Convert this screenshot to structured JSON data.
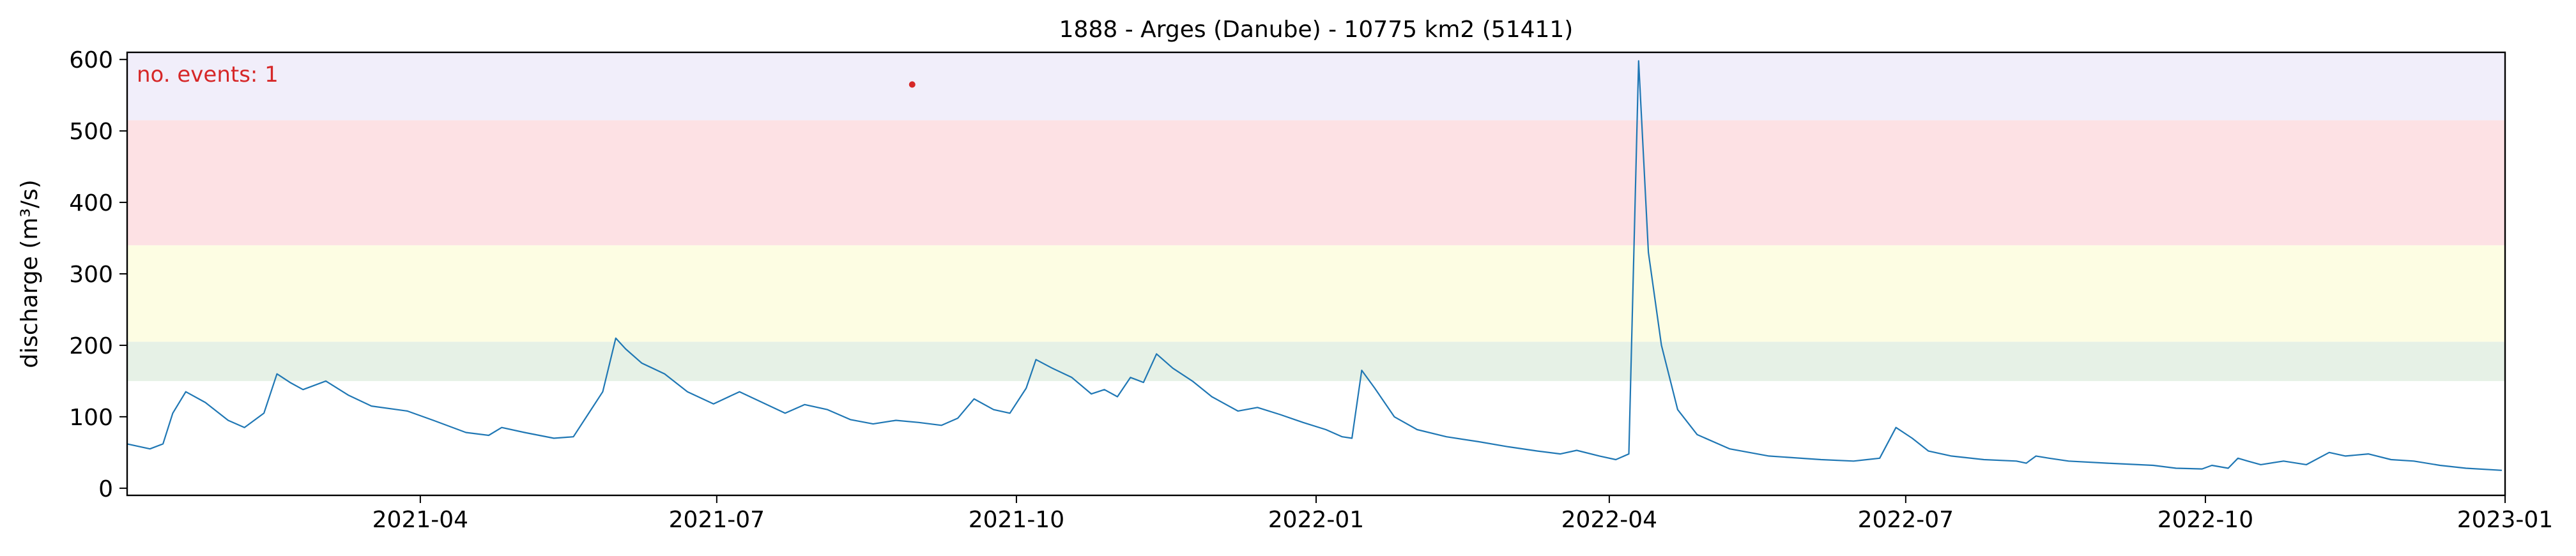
{
  "chart_data": {
    "type": "line",
    "title": "1888 - Arges (Danube) - 10775 km2 (51411)",
    "xlabel": "",
    "ylabel": "discharge (m³/s)",
    "xlim": [
      "2021-01-01",
      "2023-01-01"
    ],
    "ylim": [
      -10,
      610
    ],
    "x_ticks": [
      "2021-04",
      "2021-07",
      "2021-10",
      "2022-01",
      "2022-04",
      "2022-07",
      "2022-10",
      "2023-01"
    ],
    "y_ticks": [
      0,
      100,
      200,
      300,
      400,
      500,
      600
    ],
    "grid": false,
    "annotation": "no. events: 1",
    "threshold_bands": [
      {
        "from": 150,
        "to": 205,
        "color": "#e6f1e6"
      },
      {
        "from": 205,
        "to": 340,
        "color": "#fdfde3"
      },
      {
        "from": 340,
        "to": 515,
        "color": "#fde1e4"
      },
      {
        "from": 515,
        "to": 610,
        "color": "#f1eefa"
      }
    ],
    "series": [
      {
        "color": "#1f77b4",
        "points": [
          [
            "2021-01-01",
            62
          ],
          [
            "2021-01-08",
            55
          ],
          [
            "2021-01-12",
            62
          ],
          [
            "2021-01-15",
            105
          ],
          [
            "2021-01-19",
            135
          ],
          [
            "2021-01-25",
            120
          ],
          [
            "2021-02-01",
            95
          ],
          [
            "2021-02-06",
            85
          ],
          [
            "2021-02-12",
            105
          ],
          [
            "2021-02-16",
            160
          ],
          [
            "2021-02-20",
            148
          ],
          [
            "2021-02-24",
            138
          ],
          [
            "2021-03-03",
            150
          ],
          [
            "2021-03-10",
            130
          ],
          [
            "2021-03-17",
            115
          ],
          [
            "2021-03-28",
            108
          ],
          [
            "2021-04-05",
            95
          ],
          [
            "2021-04-15",
            78
          ],
          [
            "2021-04-22",
            74
          ],
          [
            "2021-04-26",
            85
          ],
          [
            "2021-05-03",
            78
          ],
          [
            "2021-05-12",
            70
          ],
          [
            "2021-05-18",
            72
          ],
          [
            "2021-05-22",
            100
          ],
          [
            "2021-05-27",
            135
          ],
          [
            "2021-05-31",
            210
          ],
          [
            "2021-06-03",
            195
          ],
          [
            "2021-06-08",
            175
          ],
          [
            "2021-06-15",
            160
          ],
          [
            "2021-06-22",
            135
          ],
          [
            "2021-06-30",
            118
          ],
          [
            "2021-07-08",
            135
          ],
          [
            "2021-07-15",
            120
          ],
          [
            "2021-07-22",
            105
          ],
          [
            "2021-07-28",
            117
          ],
          [
            "2021-08-04",
            110
          ],
          [
            "2021-08-11",
            96
          ],
          [
            "2021-08-18",
            90
          ],
          [
            "2021-08-25",
            95
          ],
          [
            "2021-09-01",
            92
          ],
          [
            "2021-09-08",
            88
          ],
          [
            "2021-09-13",
            98
          ],
          [
            "2021-09-18",
            125
          ],
          [
            "2021-09-24",
            110
          ],
          [
            "2021-09-29",
            105
          ],
          [
            "2021-10-04",
            140
          ],
          [
            "2021-10-07",
            180
          ],
          [
            "2021-10-12",
            168
          ],
          [
            "2021-10-18",
            155
          ],
          [
            "2021-10-24",
            132
          ],
          [
            "2021-10-28",
            138
          ],
          [
            "2021-11-01",
            128
          ],
          [
            "2021-11-05",
            155
          ],
          [
            "2021-11-09",
            148
          ],
          [
            "2021-11-13",
            188
          ],
          [
            "2021-11-18",
            168
          ],
          [
            "2021-11-24",
            150
          ],
          [
            "2021-11-30",
            128
          ],
          [
            "2021-12-08",
            108
          ],
          [
            "2021-12-14",
            113
          ],
          [
            "2021-12-21",
            103
          ],
          [
            "2021-12-28",
            92
          ],
          [
            "2022-01-04",
            82
          ],
          [
            "2022-01-09",
            72
          ],
          [
            "2022-01-12",
            70
          ],
          [
            "2022-01-15",
            165
          ],
          [
            "2022-01-19",
            140
          ],
          [
            "2022-01-25",
            100
          ],
          [
            "2022-02-01",
            82
          ],
          [
            "2022-02-10",
            72
          ],
          [
            "2022-02-20",
            65
          ],
          [
            "2022-03-01",
            58
          ],
          [
            "2022-03-10",
            52
          ],
          [
            "2022-03-17",
            48
          ],
          [
            "2022-03-22",
            53
          ],
          [
            "2022-03-29",
            45
          ],
          [
            "2022-04-03",
            40
          ],
          [
            "2022-04-07",
            48
          ],
          [
            "2022-04-10",
            598
          ],
          [
            "2022-04-13",
            330
          ],
          [
            "2022-04-17",
            200
          ],
          [
            "2022-04-22",
            110
          ],
          [
            "2022-04-28",
            75
          ],
          [
            "2022-05-08",
            55
          ],
          [
            "2022-05-20",
            45
          ],
          [
            "2022-06-05",
            40
          ],
          [
            "2022-06-15",
            38
          ],
          [
            "2022-06-23",
            42
          ],
          [
            "2022-06-28",
            85
          ],
          [
            "2022-07-03",
            70
          ],
          [
            "2022-07-08",
            52
          ],
          [
            "2022-07-15",
            45
          ],
          [
            "2022-07-25",
            40
          ],
          [
            "2022-08-04",
            38
          ],
          [
            "2022-08-07",
            35
          ],
          [
            "2022-08-10",
            45
          ],
          [
            "2022-08-14",
            42
          ],
          [
            "2022-08-20",
            38
          ],
          [
            "2022-09-01",
            35
          ],
          [
            "2022-09-15",
            32
          ],
          [
            "2022-09-22",
            28
          ],
          [
            "2022-09-30",
            27
          ],
          [
            "2022-10-03",
            32
          ],
          [
            "2022-10-08",
            28
          ],
          [
            "2022-10-11",
            42
          ],
          [
            "2022-10-14",
            38
          ],
          [
            "2022-10-18",
            33
          ],
          [
            "2022-10-25",
            38
          ],
          [
            "2022-11-01",
            33
          ],
          [
            "2022-11-08",
            50
          ],
          [
            "2022-11-13",
            45
          ],
          [
            "2022-11-20",
            48
          ],
          [
            "2022-11-27",
            40
          ],
          [
            "2022-12-04",
            38
          ],
          [
            "2022-12-12",
            32
          ],
          [
            "2022-12-20",
            28
          ],
          [
            "2022-12-31",
            25
          ]
        ]
      }
    ],
    "events": [
      {
        "x": "2021-08-30",
        "y": 565,
        "color": "#d62728"
      }
    ]
  }
}
